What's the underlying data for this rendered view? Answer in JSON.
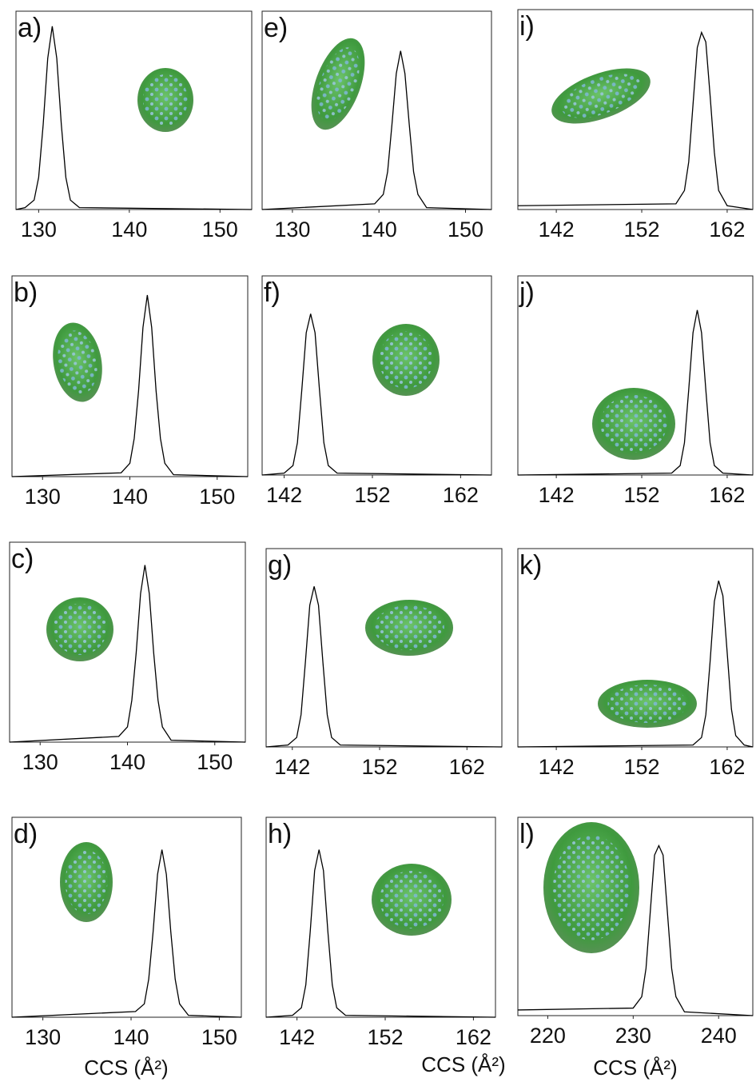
{
  "chart_data": [
    {
      "type": "line",
      "title": "a)",
      "xlim": [
        127.5,
        153.5
      ],
      "xticks": [
        130,
        140,
        150
      ],
      "ylim": [
        0,
        1.05
      ],
      "color": "#000000",
      "x": [
        127.5,
        128.5,
        129.5,
        130,
        130.5,
        131,
        131.5,
        132,
        132.5,
        133,
        133.5,
        134.5,
        153.5
      ],
      "values": [
        0,
        0.01,
        0.05,
        0.17,
        0.45,
        0.8,
        0.97,
        0.8,
        0.45,
        0.17,
        0.05,
        0.01,
        0
      ]
    },
    {
      "type": "line",
      "title": "b)",
      "xlim": [
        126.5,
        153.5
      ],
      "xticks": [
        130,
        140,
        150
      ],
      "ylim": [
        0,
        1.05
      ],
      "color": "#000000",
      "x": [
        126.5,
        139,
        140,
        140.5,
        141,
        141.5,
        142,
        142.5,
        143,
        143.5,
        144,
        145,
        153.5
      ],
      "values": [
        0,
        0.02,
        0.07,
        0.2,
        0.45,
        0.78,
        0.95,
        0.78,
        0.45,
        0.2,
        0.07,
        0.01,
        0
      ]
    },
    {
      "type": "line",
      "title": "c)",
      "xlim": [
        126.5,
        153.5
      ],
      "xticks": [
        130,
        140,
        150
      ],
      "ylim": [
        0,
        1.05
      ],
      "color": "#000000",
      "x": [
        126.5,
        139,
        140,
        140.5,
        141,
        141.5,
        142,
        142.5,
        143,
        143.5,
        144,
        145,
        153.5
      ],
      "values": [
        0,
        0.03,
        0.08,
        0.22,
        0.47,
        0.78,
        0.93,
        0.78,
        0.47,
        0.22,
        0.08,
        0.01,
        0
      ]
    },
    {
      "type": "line",
      "title": "d)",
      "xlim": [
        126.5,
        152.5
      ],
      "xticks": [
        130,
        140,
        150
      ],
      "ylim": [
        0,
        1.05
      ],
      "color": "#000000",
      "x": [
        126.5,
        140.5,
        141.5,
        142,
        142.5,
        143,
        143.5,
        144,
        144.5,
        145,
        145.5,
        146.5,
        152.5
      ],
      "values": [
        0,
        0.03,
        0.07,
        0.2,
        0.45,
        0.75,
        0.88,
        0.75,
        0.45,
        0.2,
        0.07,
        0.01,
        0
      ]
    },
    {
      "type": "line",
      "title": "e)",
      "xlim": [
        126.5,
        153
      ],
      "xticks": [
        130,
        140,
        150
      ],
      "ylim": [
        0,
        1.05
      ],
      "color": "#000000",
      "x": [
        126.5,
        139.5,
        140.5,
        141,
        141.5,
        142,
        142.5,
        143,
        143.5,
        144,
        144.5,
        145.5,
        153
      ],
      "values": [
        0,
        0.03,
        0.08,
        0.2,
        0.45,
        0.72,
        0.84,
        0.72,
        0.45,
        0.2,
        0.08,
        0.01,
        0
      ]
    },
    {
      "type": "line",
      "title": "f)",
      "xlim": [
        139.5,
        165.5
      ],
      "xticks": [
        142,
        152,
        162
      ],
      "ylim": [
        0,
        1.05
      ],
      "color": "#000000",
      "x": [
        139.5,
        142,
        143,
        143.5,
        144,
        144.5,
        145,
        145.5,
        146,
        146.5,
        147,
        148,
        165.5
      ],
      "values": [
        0,
        0.01,
        0.05,
        0.17,
        0.45,
        0.75,
        0.85,
        0.75,
        0.45,
        0.17,
        0.05,
        0.01,
        0
      ]
    },
    {
      "type": "line",
      "title": "g)",
      "xlim": [
        139,
        166
      ],
      "xticks": [
        142,
        152,
        162
      ],
      "ylim": [
        0,
        1.05
      ],
      "color": "#000000",
      "x": [
        139,
        141.5,
        142.5,
        143,
        143.5,
        144,
        144.5,
        145,
        145.5,
        146,
        146.5,
        147.5,
        166
      ],
      "values": [
        0,
        0.01,
        0.05,
        0.17,
        0.45,
        0.75,
        0.85,
        0.75,
        0.45,
        0.17,
        0.05,
        0.01,
        0
      ]
    },
    {
      "type": "line",
      "title": "h)",
      "xlim": [
        138.5,
        164.5
      ],
      "xticks": [
        142,
        152,
        162
      ],
      "ylim": [
        0,
        1.05
      ],
      "color": "#000000",
      "x": [
        138.5,
        141.5,
        142.5,
        143,
        143.5,
        144,
        144.5,
        145,
        145.5,
        146,
        146.5,
        147.5,
        164.5
      ],
      "values": [
        0,
        0.01,
        0.05,
        0.17,
        0.45,
        0.77,
        0.88,
        0.77,
        0.45,
        0.17,
        0.05,
        0.01,
        0
      ]
    },
    {
      "type": "line",
      "title": "i)",
      "xlim": [
        137.5,
        165
      ],
      "xticks": [
        142,
        152,
        162
      ],
      "ylim": [
        0,
        1.05
      ],
      "color": "#000000",
      "x": [
        137.5,
        156,
        157,
        157.5,
        158,
        158.5,
        159,
        159.5,
        160,
        160.5,
        161,
        162,
        165
      ],
      "values": [
        0.02,
        0.03,
        0.1,
        0.25,
        0.55,
        0.85,
        0.93,
        0.88,
        0.6,
        0.3,
        0.1,
        0.02,
        0
      ]
    },
    {
      "type": "line",
      "title": "j)",
      "xlim": [
        137.5,
        165
      ],
      "xticks": [
        142,
        152,
        162
      ],
      "ylim": [
        0,
        1.05
      ],
      "color": "#000000",
      "x": [
        137.5,
        155.5,
        156.5,
        157,
        157.5,
        158,
        158.5,
        159,
        159.5,
        160,
        160.5,
        161.5,
        165
      ],
      "values": [
        0,
        0.01,
        0.05,
        0.17,
        0.45,
        0.75,
        0.87,
        0.75,
        0.45,
        0.17,
        0.05,
        0.01,
        0
      ]
    },
    {
      "type": "line",
      "title": "k)",
      "xlim": [
        137.5,
        165
      ],
      "xticks": [
        142,
        152,
        162
      ],
      "ylim": [
        0,
        1.05
      ],
      "color": "#000000",
      "x": [
        137.5,
        158,
        159,
        159.5,
        160,
        160.5,
        161,
        161.5,
        162,
        162.5,
        163,
        164,
        165
      ],
      "values": [
        0,
        0.01,
        0.05,
        0.17,
        0.45,
        0.77,
        0.88,
        0.8,
        0.5,
        0.2,
        0.06,
        0.01,
        0
      ]
    },
    {
      "type": "line",
      "title": "l)",
      "xlim": [
        216.5,
        244
      ],
      "xticks": [
        220,
        230,
        240
      ],
      "ylim": [
        0,
        1.05
      ],
      "color": "#000000",
      "x": [
        216.5,
        230,
        231,
        231.5,
        232,
        232.5,
        233,
        233.5,
        234,
        234.5,
        235,
        236,
        244
      ],
      "values": [
        0.03,
        0.04,
        0.1,
        0.25,
        0.55,
        0.85,
        0.9,
        0.85,
        0.55,
        0.25,
        0.1,
        0.02,
        0
      ],
      "xlabel": "CCS (Å²)"
    }
  ],
  "d_xlabel": "CCS (Å²)",
  "h_xlabel": "CCS (Å²)"
}
